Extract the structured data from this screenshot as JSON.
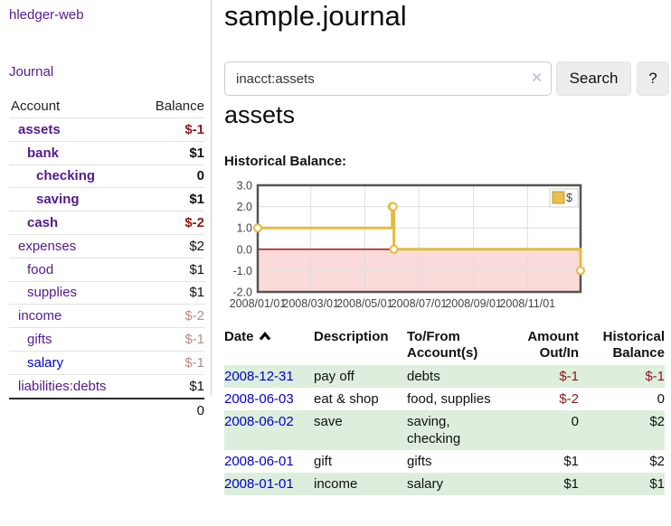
{
  "app": {
    "title": "hledger-web"
  },
  "sidebar": {
    "journal_link": "Journal",
    "table": {
      "headers": {
        "account": "Account",
        "balance": "Balance"
      },
      "accounts": [
        {
          "name": "assets",
          "balance": "$-1",
          "depth": 1,
          "in_current_view": true
        },
        {
          "name": "bank",
          "balance": "$1",
          "depth": 2,
          "in_current_view": true
        },
        {
          "name": "checking",
          "balance": "0",
          "depth": 3,
          "in_current_view": true
        },
        {
          "name": "saving",
          "balance": "$1",
          "depth": 3,
          "in_current_view": true
        },
        {
          "name": "cash",
          "balance": "$-2",
          "depth": 2,
          "in_current_view": true
        },
        {
          "name": "expenses",
          "balance": "$2",
          "depth": 1,
          "in_current_view": false
        },
        {
          "name": "food",
          "balance": "$1",
          "depth": 2,
          "in_current_view": false
        },
        {
          "name": "supplies",
          "balance": "$1",
          "depth": 2,
          "in_current_view": false
        },
        {
          "name": "income",
          "balance": "$-2",
          "depth": 1,
          "in_current_view": false
        },
        {
          "name": "gifts",
          "balance": "$-1",
          "depth": 2,
          "in_current_view": false
        },
        {
          "name": "salary",
          "balance": "$-1",
          "depth": 2,
          "in_current_view": false
        },
        {
          "name": "liabilities:debts",
          "balance": "$1",
          "depth": 1,
          "in_current_view": false
        }
      ],
      "total": "0"
    }
  },
  "main": {
    "title": "sample.journal",
    "search": {
      "value": "inacct:assets",
      "clear_icon": "✕",
      "button": "Search",
      "help_button": "?"
    },
    "account_heading": "assets",
    "chart_label": "Historical Balance:"
  },
  "chart_data": {
    "type": "line",
    "title": "Historical Balance",
    "x_range": [
      "2008-01-01",
      "2008-12-31"
    ],
    "ylim": [
      -2,
      3
    ],
    "y_ticks": [
      3.0,
      2.0,
      1.0,
      0.0,
      -1.0,
      -2.0
    ],
    "x_ticks": [
      {
        "date": "2008-01-01",
        "label": "2008/01/01"
      },
      {
        "date": "2008-03-01",
        "label": "2008/03/01"
      },
      {
        "date": "2008-05-01",
        "label": "2008/05/01"
      },
      {
        "date": "2008-07-01",
        "label": "2008/07/01"
      },
      {
        "date": "2008-09-01",
        "label": "2008/09/01"
      },
      {
        "date": "2008-11-01",
        "label": "2008/11/01"
      }
    ],
    "grid": true,
    "grid_color": "#dedede",
    "zero_line_color": "#9b0000",
    "negative_region_color": "#fbdada",
    "legend": {
      "position": "top-right",
      "label": "$",
      "swatch_color": "#e8c04a"
    },
    "series": [
      {
        "name": "$",
        "color": "#e3bb3e",
        "step": true,
        "points": [
          {
            "date": "2008-01-01",
            "value": 1
          },
          {
            "date": "2008-06-01",
            "value": 2
          },
          {
            "date": "2008-06-02",
            "value": 2
          },
          {
            "date": "2008-06-03",
            "value": 0
          },
          {
            "date": "2008-12-31",
            "value": -1
          }
        ]
      }
    ]
  },
  "register": {
    "headers": {
      "date": "Date",
      "description": "Description",
      "account_line1": "To/From",
      "account_line2": "Account(s)",
      "amount_line1": "Amount",
      "amount_line2": "Out/In",
      "balance_line1": "Historical",
      "balance_line2": "Balance"
    },
    "rows": [
      {
        "date": "2008-12-31",
        "description": "pay off",
        "accounts": "debts",
        "amount": "$-1",
        "balance": "$-1"
      },
      {
        "date": "2008-06-03",
        "description": "eat & shop",
        "accounts": "food, supplies",
        "amount": "$-2",
        "balance": "0"
      },
      {
        "date": "2008-06-02",
        "description": "save",
        "accounts": "saving, checking",
        "amount": "0",
        "balance": "$2"
      },
      {
        "date": "2008-06-01",
        "description": "gift",
        "accounts": "gifts",
        "amount": "$1",
        "balance": "$2"
      },
      {
        "date": "2008-01-01",
        "description": "income",
        "accounts": "salary",
        "amount": "$1",
        "balance": "$1"
      }
    ]
  }
}
